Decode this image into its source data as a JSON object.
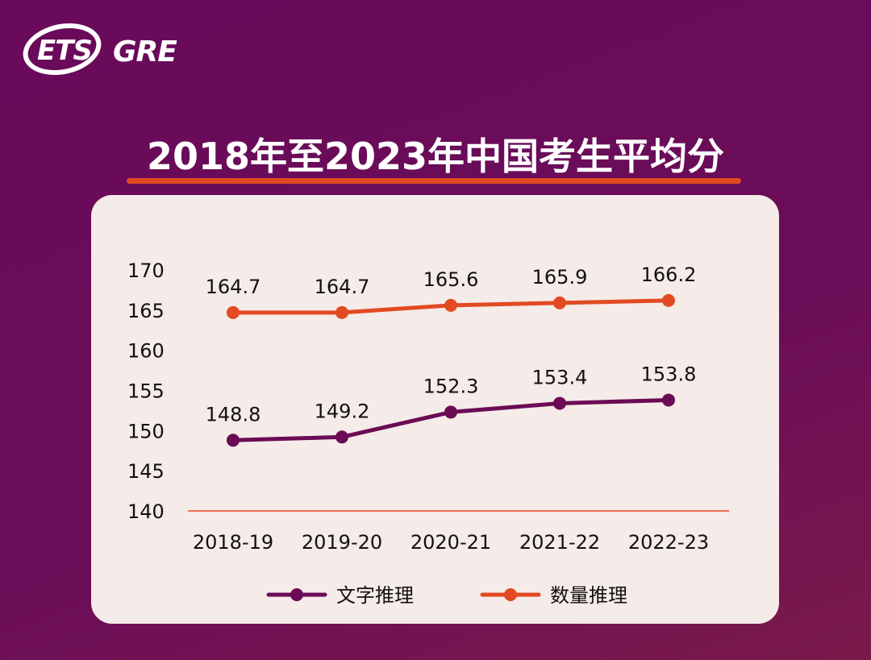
{
  "logo": {
    "ets": "ETS",
    "gre": "GRE"
  },
  "colors": {
    "background": "#6b0d58",
    "card": "#f5ebe8",
    "accent": "#e24a22",
    "verbal": "#6b0b55",
    "quant": "#e24a22"
  },
  "chart_data": {
    "type": "line",
    "title": "2018年至2023年中国考生平均分",
    "categories": [
      "2018-19",
      "2019-20",
      "2020-21",
      "2021-22",
      "2022-23"
    ],
    "yticks": [
      140,
      145,
      150,
      155,
      160,
      165,
      170
    ],
    "ylim": [
      140,
      170
    ],
    "grid": false,
    "legend_position": "bottom",
    "series": [
      {
        "name": "文字推理",
        "color": "#6b0b55",
        "values": [
          148.8,
          149.2,
          152.3,
          153.4,
          153.8
        ]
      },
      {
        "name": "数量推理",
        "color": "#e24a22",
        "values": [
          164.7,
          164.7,
          165.6,
          165.9,
          166.2
        ]
      }
    ]
  }
}
